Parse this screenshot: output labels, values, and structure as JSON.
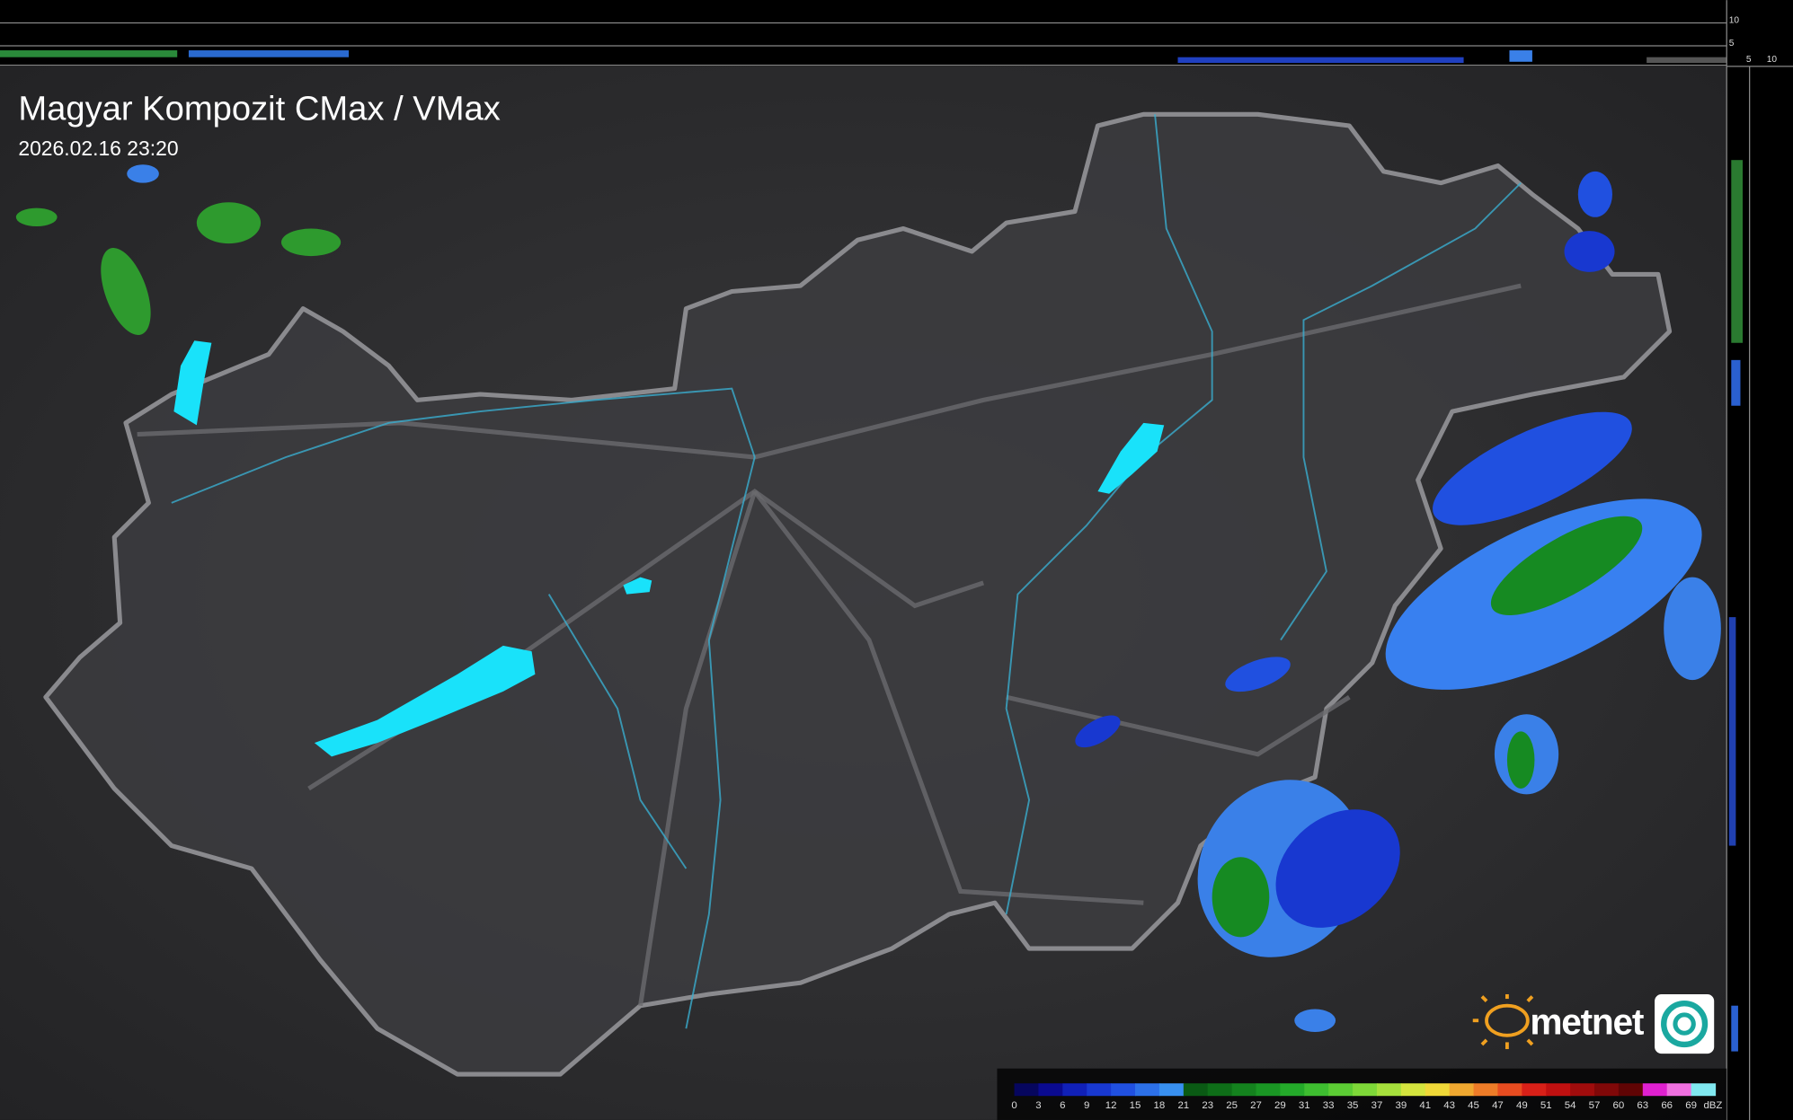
{
  "header": {
    "title": "Magyar Kompozit CMax / VMax",
    "timestamp": "2026.02.16 23:20"
  },
  "side_axis": {
    "top_labels": [
      "10",
      "5"
    ],
    "bottom_labels": [
      "5",
      "10"
    ]
  },
  "logo": {
    "text": "metnet"
  },
  "legend": {
    "labels": [
      0,
      3,
      6,
      9,
      12,
      15,
      18,
      21,
      23,
      25,
      27,
      29,
      31,
      33,
      35,
      37,
      39,
      41,
      43,
      45,
      47,
      49,
      51,
      54,
      57,
      60,
      63,
      66,
      69
    ],
    "unit": "dBZ",
    "colors": [
      "#06065e",
      "#0a0a90",
      "#1020b8",
      "#1838d0",
      "#2050e0",
      "#2c70e8",
      "#3890f0",
      "#0a5a14",
      "#0e6e18",
      "#14821e",
      "#1a9624",
      "#24aa2a",
      "#3ebe30",
      "#5ccc34",
      "#7ed838",
      "#a6e03c",
      "#d4e43e",
      "#f0d838",
      "#f0a830",
      "#ee7c28",
      "#e84c20",
      "#d82018",
      "#c01010",
      "#a00c0c",
      "#800808",
      "#600404",
      "#e020d0",
      "#f070e0",
      "#80e8f0"
    ]
  }
}
